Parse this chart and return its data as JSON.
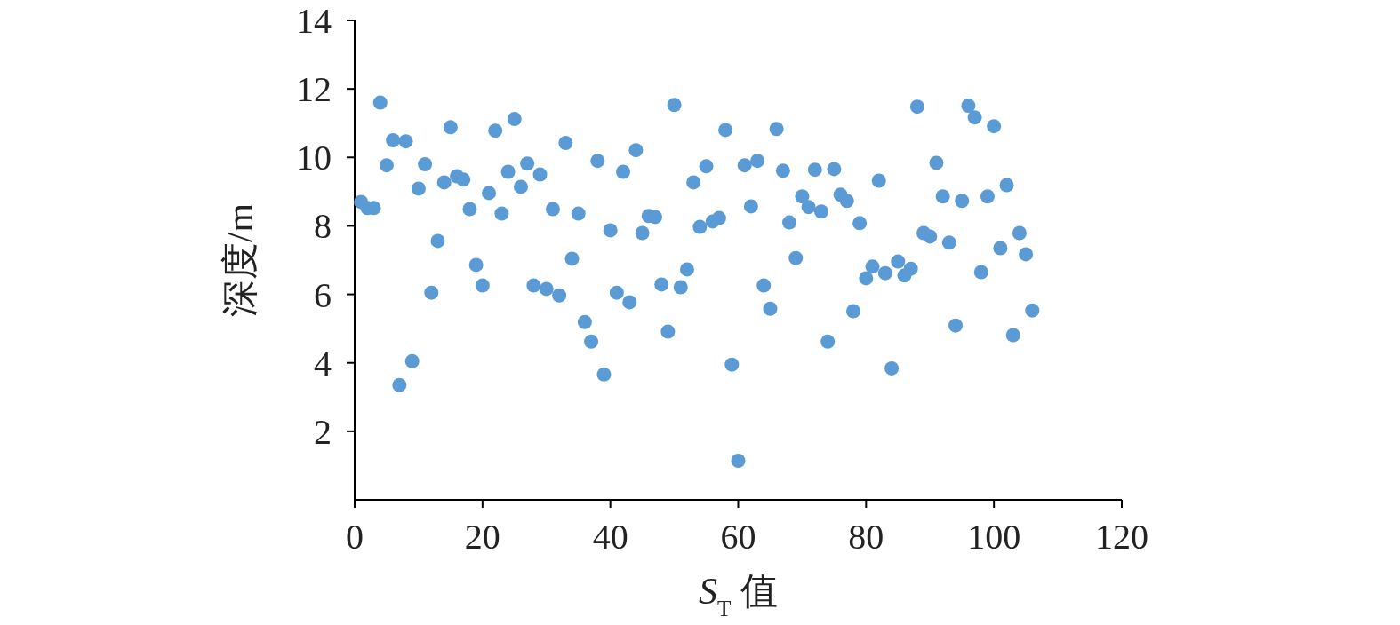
{
  "chart_data": {
    "type": "scatter",
    "xlabel": "S$_{T}$ 值",
    "ylabel": "深度/m",
    "x": [
      1,
      2,
      3,
      4,
      5,
      6,
      7,
      8,
      9,
      10,
      11,
      12,
      13,
      14,
      15,
      16,
      17,
      18,
      19,
      20,
      21,
      22,
      23,
      24,
      25,
      26,
      27,
      28,
      29,
      30,
      31,
      32,
      33,
      34,
      35,
      36,
      37,
      38,
      39,
      40,
      41,
      42,
      43,
      44,
      45,
      46,
      47,
      48,
      49,
      50,
      51,
      52,
      53,
      54,
      55,
      56,
      57,
      58,
      59,
      60,
      61,
      62,
      63,
      64,
      65,
      66,
      67,
      68,
      69,
      70,
      71,
      72,
      73,
      74,
      75,
      76,
      77,
      78,
      79,
      80,
      81,
      82,
      83,
      84,
      85,
      86,
      87,
      88,
      89,
      90,
      91,
      92,
      93,
      94,
      95,
      96,
      97,
      98,
      99,
      100,
      101,
      102,
      103,
      104,
      105,
      106
    ],
    "series": [
      {
        "color": "#5b9bd5",
        "values": [
          8.7,
          8.52,
          8.52,
          11.6,
          9.77,
          10.5,
          3.35,
          10.47,
          4.05,
          9.09,
          9.8,
          6.05,
          7.56,
          9.27,
          10.88,
          9.45,
          9.35,
          8.49,
          6.86,
          6.26,
          8.96,
          10.78,
          8.36,
          9.58,
          11.12,
          9.14,
          9.82,
          6.26,
          9.5,
          6.16,
          8.49,
          5.97,
          10.42,
          7.04,
          8.36,
          5.19,
          4.62,
          9.9,
          3.66,
          7.87,
          6.05,
          9.58,
          5.77,
          10.21,
          7.79,
          8.29,
          8.26,
          6.29,
          4.91,
          11.53,
          6.21,
          6.73,
          9.27,
          7.97,
          9.74,
          8.13,
          8.23,
          10.8,
          3.95,
          1.14,
          9.77,
          8.57,
          9.9,
          6.26,
          5.58,
          10.83,
          9.61,
          8.1,
          7.06,
          8.86,
          8.55,
          9.64,
          8.42,
          4.62,
          9.66,
          8.91,
          8.73,
          5.51,
          8.08,
          6.47,
          6.81,
          9.32,
          6.62,
          3.84,
          6.96,
          6.55,
          6.75,
          11.48,
          7.79,
          7.69,
          9.84,
          8.86,
          7.51,
          5.09,
          8.73,
          11.51,
          11.17,
          6.65,
          8.86,
          10.91,
          7.35,
          9.19,
          4.81,
          7.79,
          7.17,
          5.53
        ]
      }
    ],
    "xlim": [
      0,
      120
    ],
    "xticks": [
      0,
      20,
      40,
      60,
      80,
      100,
      120
    ],
    "ylim": [
      0,
      14
    ],
    "yticks": [
      2,
      4,
      6,
      8,
      10,
      12,
      14
    ],
    "marker": "circle",
    "grid": false
  }
}
